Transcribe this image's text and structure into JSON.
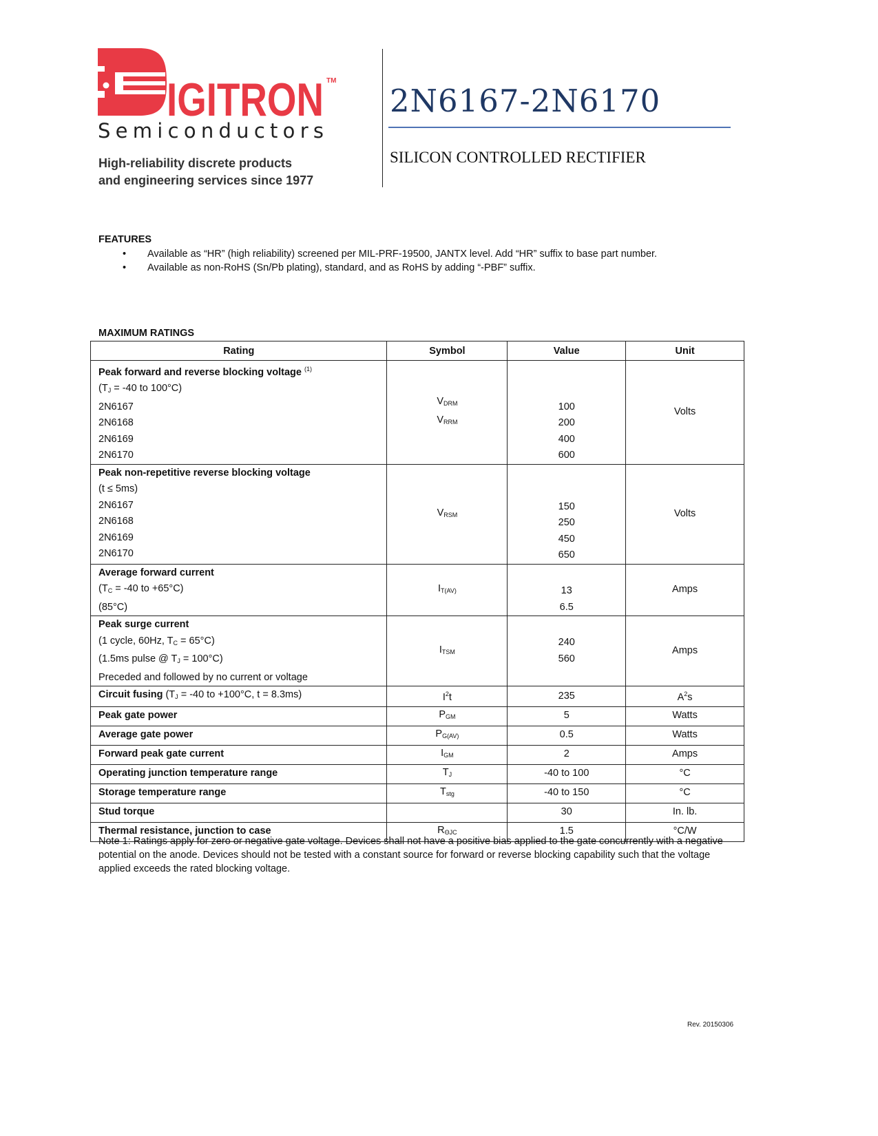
{
  "header": {
    "logo_text": "DIGITRON",
    "logo_sub": "Semiconductors",
    "logo_tm": "TM",
    "tagline_1": "High-reliability discrete products",
    "tagline_2": "and engineering services since 1977",
    "title": "2N6167-2N6170",
    "subtitle": "SILICON CONTROLLED RECTIFIER",
    "brand_color": "#e83a45",
    "title_color": "#1f3864"
  },
  "features": {
    "heading": "FEATURES",
    "items": [
      "Available as “HR” (high reliability) screened per MIL-PRF-19500, JANTX level.  Add “HR” suffix to base part number.",
      "Available as non-RoHS (Sn/Pb plating), standard, and as RoHS by adding “-PBF” suffix."
    ]
  },
  "ratings": {
    "heading": "MAXIMUM RATINGS",
    "columns": [
      "Rating",
      "Symbol",
      "Value",
      "Unit"
    ],
    "rows": [
      {
        "rating": [
          [
            {
              "t": "Peak forward and reverse blocking voltage ",
              "b": true
            },
            {
              "t": "(1)",
              "sup": true
            }
          ],
          [
            {
              "t": "(T"
            },
            {
              "t": "J",
              "sub": true
            },
            {
              "t": " = -40 to 100°C)"
            }
          ],
          [
            {
              "t": "2N6167"
            }
          ],
          [
            {
              "t": "2N6168"
            }
          ],
          [
            {
              "t": "2N6169"
            }
          ],
          [
            {
              "t": "2N6170"
            }
          ]
        ],
        "symbol": [
          [
            {
              "t": "V"
            },
            {
              "t": "DRM",
              "sub": true
            }
          ],
          [
            {
              "t": "V"
            },
            {
              "t": "RRM",
              "sub": true
            }
          ]
        ],
        "value": [
          "100",
          "200",
          "400",
          "600"
        ],
        "unit": "Volts"
      },
      {
        "rating": [
          [
            {
              "t": "Peak non-repetitive reverse blocking voltage",
              "b": true
            }
          ],
          [
            {
              "t": "(t ≤ 5ms)"
            }
          ],
          [
            {
              "t": "2N6167"
            }
          ],
          [
            {
              "t": "2N6168"
            }
          ],
          [
            {
              "t": "2N6169"
            }
          ],
          [
            {
              "t": "2N6170"
            }
          ]
        ],
        "symbol": [
          [
            {
              "t": "V"
            },
            {
              "t": "RSM",
              "sub": true
            }
          ]
        ],
        "value": [
          "150",
          "250",
          "450",
          "650"
        ],
        "unit": "Volts"
      },
      {
        "rating": [
          [
            {
              "t": "Average forward current",
              "b": true
            }
          ],
          [
            {
              "t": "(T"
            },
            {
              "t": "C",
              "sub": true
            },
            {
              "t": " = -40 to +65°C)"
            }
          ],
          [
            {
              "t": "(85°C)"
            }
          ]
        ],
        "symbol": [
          [
            {
              "t": "I"
            },
            {
              "t": "T(AV)",
              "sub": true
            }
          ]
        ],
        "value": [
          "13",
          "6.5"
        ],
        "unit": "Amps"
      },
      {
        "rating": [
          [
            {
              "t": "Peak surge current",
              "b": true
            }
          ],
          [
            {
              "t": "(1 cycle, 60Hz, T"
            },
            {
              "t": "C",
              "sub": true
            },
            {
              "t": " = 65°C)"
            }
          ],
          [
            {
              "t": "(1.5ms pulse @ T"
            },
            {
              "t": "J",
              "sub": true
            },
            {
              "t": " = 100°C)"
            }
          ],
          [
            {
              "t": "Preceded and followed by no current or voltage"
            }
          ]
        ],
        "symbol": [
          [
            {
              "t": "I"
            },
            {
              "t": "TSM",
              "sub": true
            }
          ]
        ],
        "value": [
          "240",
          "560"
        ],
        "unit": "Amps"
      },
      {
        "rating": [
          [
            {
              "t": "Circuit fusing",
              "b": true
            },
            {
              "t": " (T"
            },
            {
              "t": "J",
              "sub": true
            },
            {
              "t": " = -40 to +100°C, t = 8.3ms)"
            }
          ]
        ],
        "symbol": [
          [
            {
              "t": "I"
            },
            {
              "t": "2",
              "sup": true
            },
            {
              "t": "t"
            }
          ]
        ],
        "value": [
          "235"
        ],
        "unit_rich": [
          {
            "t": "A"
          },
          {
            "t": "2",
            "sup": true
          },
          {
            "t": "s"
          }
        ]
      },
      {
        "rating": [
          [
            {
              "t": "Peak gate power",
              "b": true
            }
          ]
        ],
        "symbol": [
          [
            {
              "t": "P"
            },
            {
              "t": "GM",
              "sub": true
            }
          ]
        ],
        "value": [
          "5"
        ],
        "unit": "Watts"
      },
      {
        "rating": [
          [
            {
              "t": "Average gate power",
              "b": true
            }
          ]
        ],
        "symbol": [
          [
            {
              "t": "P"
            },
            {
              "t": "G(AV)",
              "sub": true
            }
          ]
        ],
        "value": [
          "0.5"
        ],
        "unit": "Watts"
      },
      {
        "rating": [
          [
            {
              "t": "Forward peak gate current",
              "b": true
            }
          ]
        ],
        "symbol": [
          [
            {
              "t": "I"
            },
            {
              "t": "GM",
              "sub": true
            }
          ]
        ],
        "value": [
          "2"
        ],
        "unit": "Amps"
      },
      {
        "rating": [
          [
            {
              "t": "Operating junction temperature range",
              "b": true
            }
          ]
        ],
        "symbol": [
          [
            {
              "t": "T"
            },
            {
              "t": "J",
              "sub": true
            }
          ]
        ],
        "value": [
          "-40 to 100"
        ],
        "unit": "°C"
      },
      {
        "rating": [
          [
            {
              "t": "Storage temperature range",
              "b": true
            }
          ]
        ],
        "symbol": [
          [
            {
              "t": "T"
            },
            {
              "t": "stg",
              "sub": true
            }
          ]
        ],
        "value": [
          "-40 to 150"
        ],
        "unit": "°C"
      },
      {
        "rating": [
          [
            {
              "t": "Stud torque",
              "b": true
            }
          ]
        ],
        "symbol": [],
        "value": [
          "30"
        ],
        "unit": "In. lb."
      },
      {
        "rating": [
          [
            {
              "t": "Thermal resistance, junction to case",
              "b": true
            }
          ]
        ],
        "symbol": [
          [
            {
              "t": "R"
            },
            {
              "t": "ΘJC",
              "sub": true
            }
          ]
        ],
        "value": [
          "1.5"
        ],
        "unit": "°C/W"
      }
    ],
    "note": "Note 1: Ratings apply for zero or negative gate voltage. Devices shall not have a positive bias applied to the gate concurrently with a negative potential on the anode. Devices should not be tested with a constant source for forward or reverse blocking capability such that the voltage applied exceeds the rated blocking voltage."
  },
  "footer": {
    "revision": "Rev. 20150306"
  }
}
